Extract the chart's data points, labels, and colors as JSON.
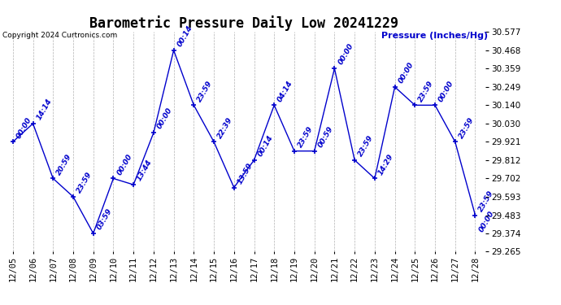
{
  "title": "Barometric Pressure Daily Low 20241229",
  "copyright": "Copyright 2024 Curtronics.com",
  "ylabel": "Pressure (Inches/Hg)",
  "dates": [
    "12/05",
    "12/06",
    "12/07",
    "12/08",
    "12/09",
    "12/10",
    "12/11",
    "12/12",
    "12/13",
    "12/14",
    "12/15",
    "12/16",
    "12/17",
    "12/18",
    "12/19",
    "12/20",
    "12/21",
    "12/22",
    "12/23",
    "12/24",
    "12/25",
    "12/26",
    "12/27",
    "12/28"
  ],
  "times": [
    "00:00",
    "14:14",
    "20:59",
    "23:59",
    "03:59",
    "00:00",
    "13:44",
    "00:00",
    "00:14",
    "23:59",
    "22:39",
    "13:59",
    "00:14",
    "04:14",
    "23:59",
    "00:59",
    "00:00",
    "23:59",
    "14:29",
    "00:00",
    "23:59",
    "00:00",
    "23:59",
    "23:59"
  ],
  "extra_time_last": "00:00",
  "values": [
    29.921,
    30.03,
    29.702,
    29.593,
    29.374,
    29.702,
    29.665,
    29.975,
    30.468,
    30.14,
    29.921,
    29.648,
    29.812,
    30.14,
    29.866,
    29.866,
    30.359,
    29.812,
    29.702,
    30.249,
    30.14,
    30.14,
    29.921,
    29.483
  ],
  "ylim": [
    29.265,
    30.577
  ],
  "yticks": [
    29.265,
    29.374,
    29.483,
    29.593,
    29.702,
    29.812,
    29.921,
    30.03,
    30.14,
    30.249,
    30.359,
    30.468,
    30.577
  ],
  "line_color": "#0000cc",
  "marker_color": "#0000cc",
  "text_color": "#0000cc",
  "title_color": "#000000",
  "bg_color": "#ffffff",
  "grid_color": "#aaaaaa",
  "title_fontsize": 12,
  "tick_fontsize": 7.5,
  "annot_fontsize": 6.5,
  "ylabel_fontsize": 8
}
